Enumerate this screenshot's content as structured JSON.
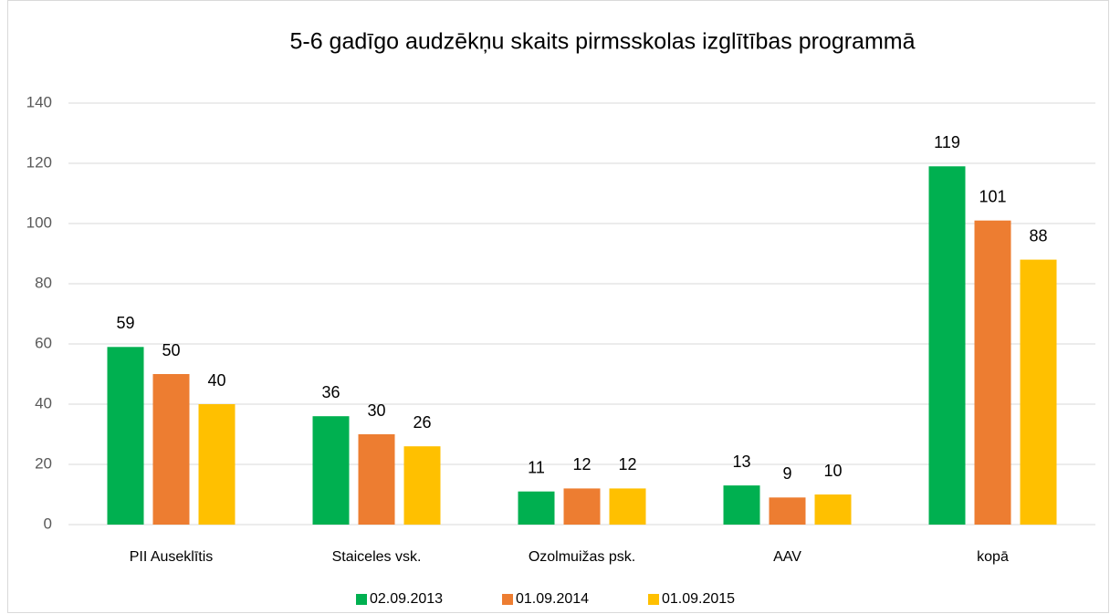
{
  "chart_data": {
    "type": "bar",
    "title": "5-6 gadīgo audzēkņu skaits pirmsskolas izglītības programmā",
    "categories": [
      "PII Auseklītis",
      "Staiceles vsk.",
      "Ozolmuižas psk.",
      "AAV",
      "kopā"
    ],
    "series": [
      {
        "name": "02.09.2013",
        "color": "#00b050",
        "values": [
          59,
          36,
          11,
          13,
          119
        ]
      },
      {
        "name": "01.09.2014",
        "color": "#ed7d31",
        "values": [
          50,
          30,
          12,
          9,
          101
        ]
      },
      {
        "name": "01.09.2015",
        "color": "#ffc000",
        "values": [
          40,
          26,
          12,
          10,
          88
        ]
      }
    ],
    "ylim": [
      0,
      140
    ],
    "yticks": [
      0,
      20,
      40,
      60,
      80,
      100,
      120,
      140
    ],
    "grid": true,
    "legend": "bottom"
  }
}
